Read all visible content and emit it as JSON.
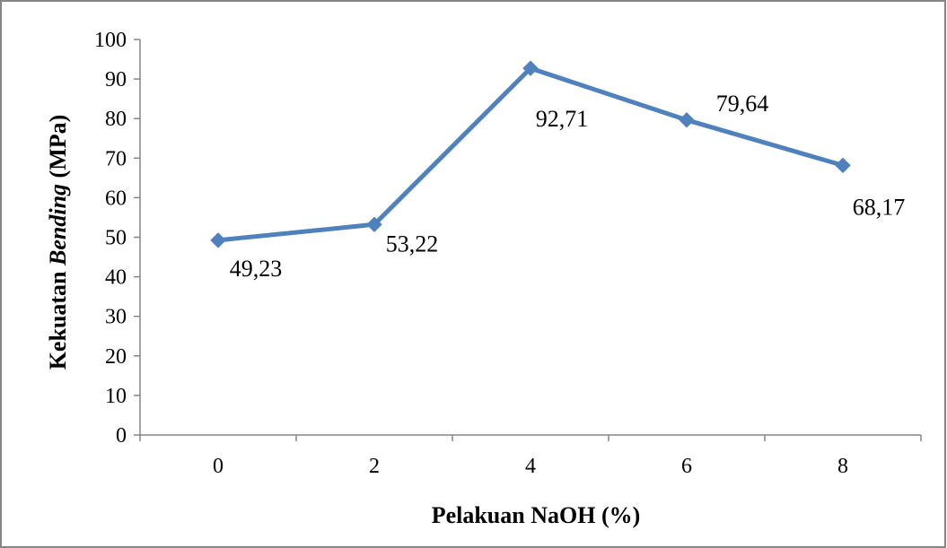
{
  "chart_data": {
    "type": "line",
    "title": "",
    "xlabel": "Pelakuan NaOH (%)",
    "ylabel": {
      "prefix": "Kekuatan ",
      "emphasis": "Bending",
      "suffix": " (MPa)"
    },
    "categories": [
      "0",
      "2",
      "4",
      "6",
      "8"
    ],
    "series": [
      {
        "values": [
          49.23,
          53.22,
          92.71,
          79.64,
          68.17
        ],
        "data_labels": [
          "49,23",
          "53,22",
          "92,71",
          "79,64",
          "68,17"
        ],
        "color": "#4F81BD",
        "marker": "diamond"
      }
    ],
    "ylim": [
      0,
      100
    ],
    "yticks": [
      "0",
      "10",
      "20",
      "30",
      "40",
      "50",
      "60",
      "70",
      "80",
      "90",
      "100"
    ],
    "grid": false,
    "legend": "none",
    "frame_color": "#868686",
    "axis_color": "#868686"
  }
}
